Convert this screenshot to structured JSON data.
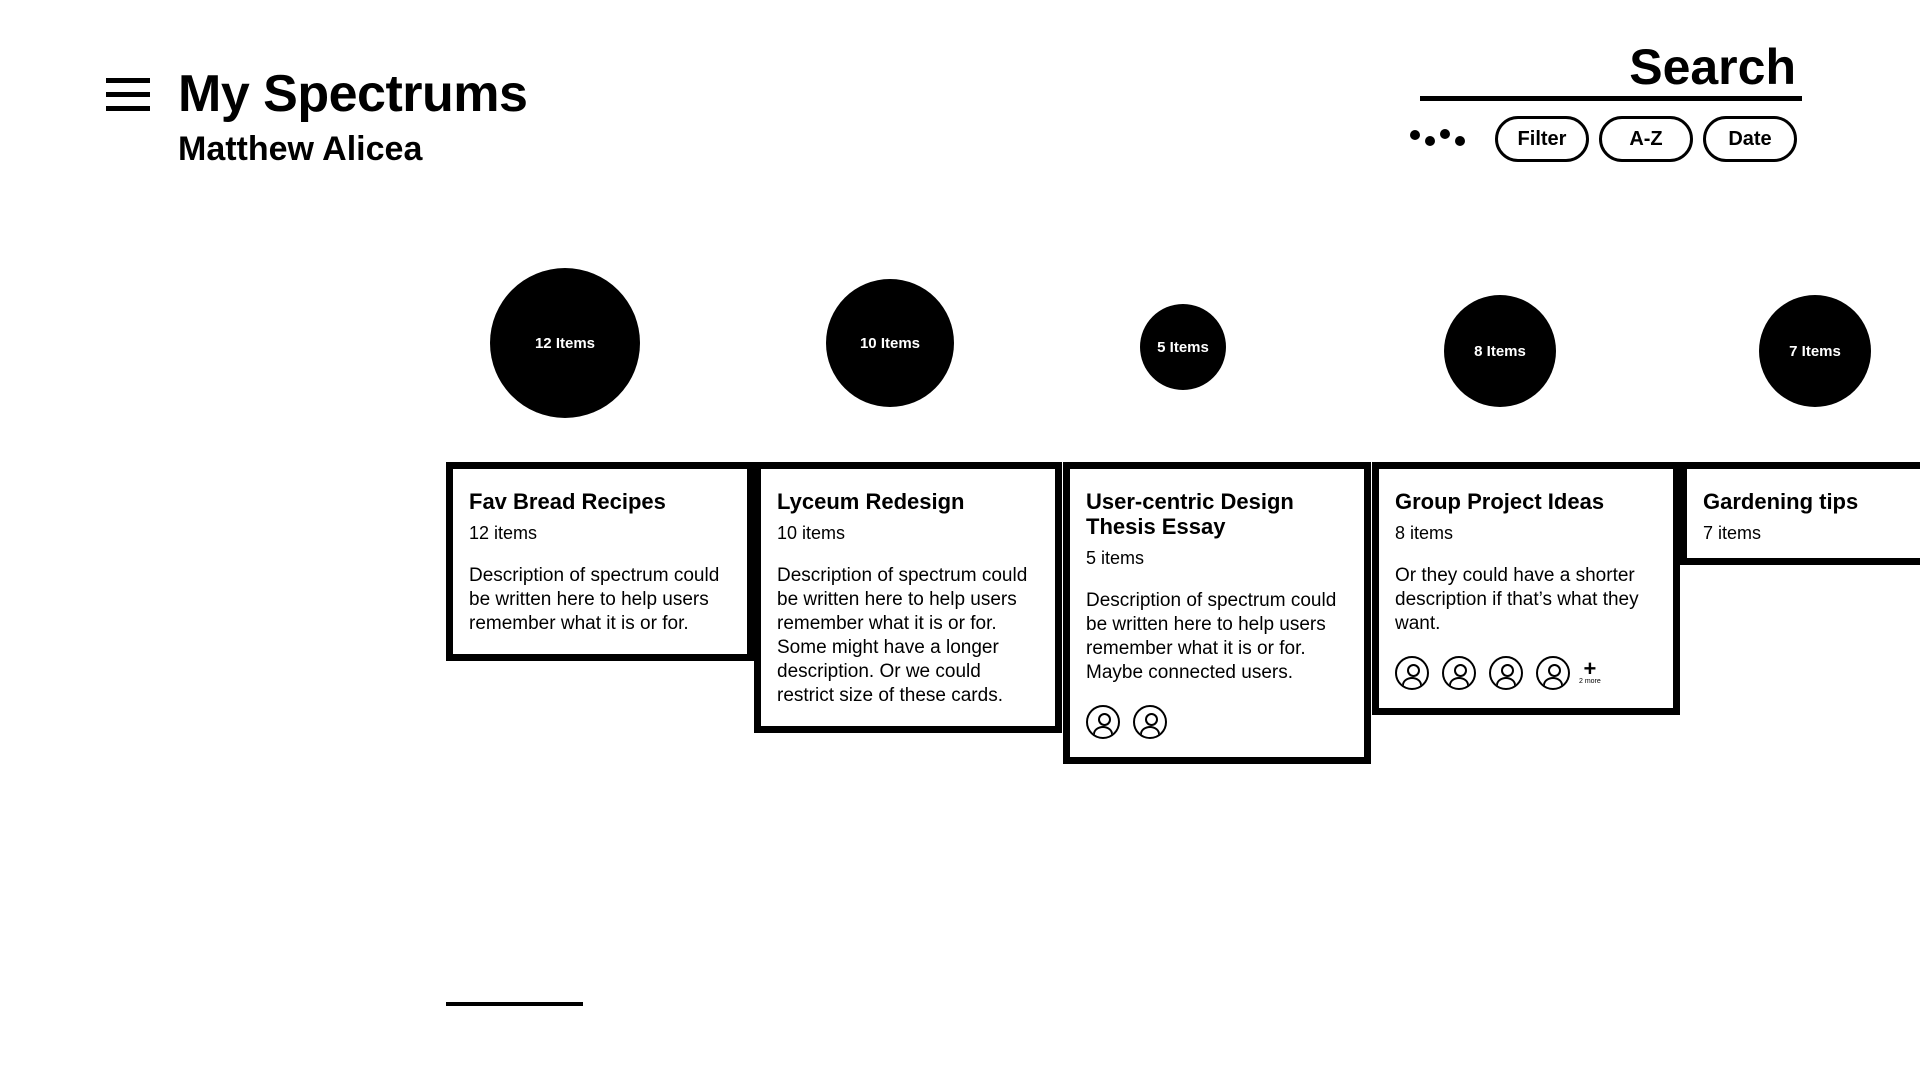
{
  "header": {
    "menu_icon": "hamburger-menu-icon",
    "title": "My Spectrums",
    "user_name": "Matthew Alicea"
  },
  "search": {
    "placeholder": "Search",
    "value": ""
  },
  "toolbar": {
    "more_icon": "dots-icon",
    "filter_label": "Filter",
    "az_label": "A-Z",
    "date_label": "Date"
  },
  "spectrums": [
    {
      "bubble_label": "12 Items",
      "title": "Fav Bread Recipes",
      "count": "12 items",
      "description": "Description of spectrum could be written here to help users remember what it is or for."
    },
    {
      "bubble_label": "10 Items",
      "title": "Lyceum Redesign",
      "count": "10 items",
      "description": "Description of spectrum could be written here to help users remember what it is or for. Some might have a longer description. Or we could restrict size of these cards."
    },
    {
      "bubble_label": "5 Items",
      "title": "User-centric Design Thesis Essay",
      "count": "5 items",
      "description": "Description of spectrum could be written here to help users remember what it is or for. Maybe connected users."
    },
    {
      "bubble_label": "8 Items",
      "title": "Group Project Ideas",
      "count": "8 items",
      "description": "Or they could have a shorter description if that’s what they want.",
      "more_users_label": "2 more"
    },
    {
      "bubble_label": "7 Items",
      "title": "Gardening tips",
      "count": "7 items",
      "description": ""
    }
  ],
  "colors": {
    "foreground": "#000000",
    "background": "#ffffff"
  }
}
